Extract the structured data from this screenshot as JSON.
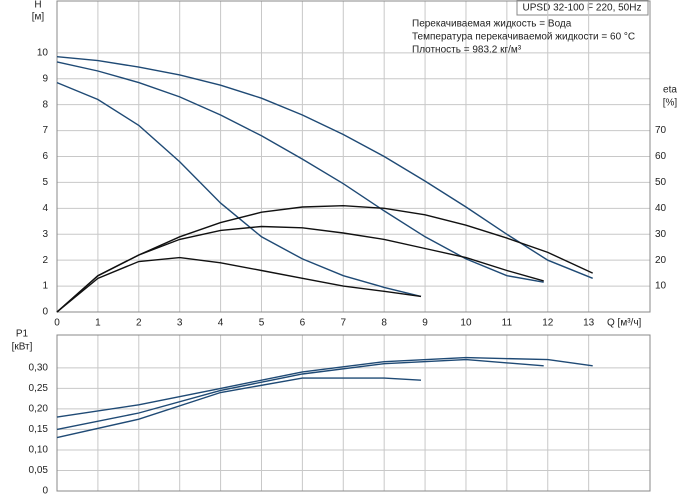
{
  "chart_data": [
    {
      "type": "line",
      "title": "UPSD 32-100 F 220, 50Hz",
      "annotations": [
        "Перекачиваемая жидкость = Вода",
        "Температура перекачиваемой жидкости = 60 °C",
        "Плотность = 983.2 кг/м³"
      ],
      "ylabel": "H",
      "yunit": "[м]",
      "y2label": "eta",
      "y2unit": "[%]",
      "xlabel": "Q [м³/ч]",
      "xlim": [
        0,
        14.5
      ],
      "xticks": [
        0,
        1,
        2,
        3,
        4,
        5,
        6,
        7,
        8,
        9,
        10,
        11,
        12,
        13
      ],
      "ylim": [
        0,
        12
      ],
      "yticks": [
        0,
        1,
        2,
        3,
        4,
        5,
        6,
        7,
        8,
        9,
        10
      ],
      "y2lim": [
        0,
        120
      ],
      "y2ticks": [
        10,
        20,
        30,
        40,
        50,
        60,
        70
      ],
      "grid": true,
      "series": [
        {
          "color": "#1f4a75",
          "x": [
            0,
            1,
            2,
            3,
            4,
            5,
            6,
            7,
            8,
            9,
            10,
            11,
            12,
            13.1
          ],
          "values": [
            9.85,
            9.7,
            9.45,
            9.15,
            8.75,
            8.25,
            7.6,
            6.85,
            6.0,
            5.05,
            4.05,
            3.0,
            2.0,
            1.3
          ]
        },
        {
          "color": "#1f4a75",
          "x": [
            0,
            1,
            2,
            3,
            4,
            5,
            6,
            7,
            8,
            9,
            10,
            11,
            11.9
          ],
          "values": [
            9.65,
            9.3,
            8.85,
            8.3,
            7.6,
            6.8,
            5.9,
            4.95,
            3.9,
            2.9,
            2.05,
            1.4,
            1.15
          ]
        },
        {
          "color": "#1f4a75",
          "x": [
            0,
            1,
            2,
            3,
            4,
            5,
            6,
            7,
            8,
            8.9
          ],
          "values": [
            8.85,
            8.2,
            7.2,
            5.8,
            4.2,
            2.9,
            2.05,
            1.4,
            0.95,
            0.6
          ]
        },
        {
          "color": "#111111",
          "axis": "y2",
          "x": [
            0,
            1,
            2,
            3,
            4,
            5,
            6,
            7,
            8,
            9,
            10,
            11,
            12,
            13.1
          ],
          "values": [
            0,
            14,
            22,
            29,
            34.5,
            38.5,
            40.5,
            41,
            40,
            37.5,
            33.5,
            28.5,
            23,
            15
          ]
        },
        {
          "color": "#111111",
          "axis": "y2",
          "x": [
            0,
            1,
            2,
            3,
            4,
            5,
            6,
            7,
            8,
            9,
            10,
            11,
            11.9
          ],
          "values": [
            0,
            14,
            22,
            28,
            31.5,
            33,
            32.5,
            30.5,
            28,
            24.5,
            21,
            16,
            12
          ]
        },
        {
          "color": "#111111",
          "axis": "y2",
          "x": [
            0,
            1,
            2,
            3,
            4,
            5,
            6,
            7,
            8,
            8.9
          ],
          "values": [
            0,
            13,
            19.5,
            21,
            19,
            16,
            13,
            10,
            8,
            6
          ]
        }
      ]
    },
    {
      "type": "line",
      "ylabel": "P1",
      "yunit": "[кВт]",
      "xlim": [
        0,
        14.5
      ],
      "xticks": [
        0,
        1,
        2,
        3,
        4,
        5,
        6,
        7,
        8,
        9,
        10,
        11,
        12,
        13
      ],
      "ylim": [
        0,
        0.38
      ],
      "yticks": [
        0,
        {
          "value": 0.05,
          "label": "0,05"
        },
        {
          "value": 0.1,
          "label": "0,10"
        },
        {
          "value": 0.15,
          "label": "0,15"
        },
        {
          "value": 0.2,
          "label": "0,20"
        },
        {
          "value": 0.25,
          "label": "0,25"
        },
        {
          "value": 0.3,
          "label": "0,30"
        }
      ],
      "grid": true,
      "series": [
        {
          "color": "#1f4a75",
          "x": [
            0,
            2,
            4,
            6,
            8,
            10,
            12,
            13.1
          ],
          "values": [
            0.18,
            0.21,
            0.25,
            0.29,
            0.315,
            0.325,
            0.32,
            0.305
          ]
        },
        {
          "color": "#1f4a75",
          "x": [
            0,
            2,
            4,
            6,
            8,
            10,
            11.9
          ],
          "values": [
            0.15,
            0.19,
            0.245,
            0.285,
            0.31,
            0.32,
            0.305
          ]
        },
        {
          "color": "#1f4a75",
          "x": [
            0,
            2,
            4,
            6,
            8,
            8.9
          ],
          "values": [
            0.13,
            0.175,
            0.24,
            0.275,
            0.275,
            0.27
          ]
        }
      ]
    }
  ]
}
